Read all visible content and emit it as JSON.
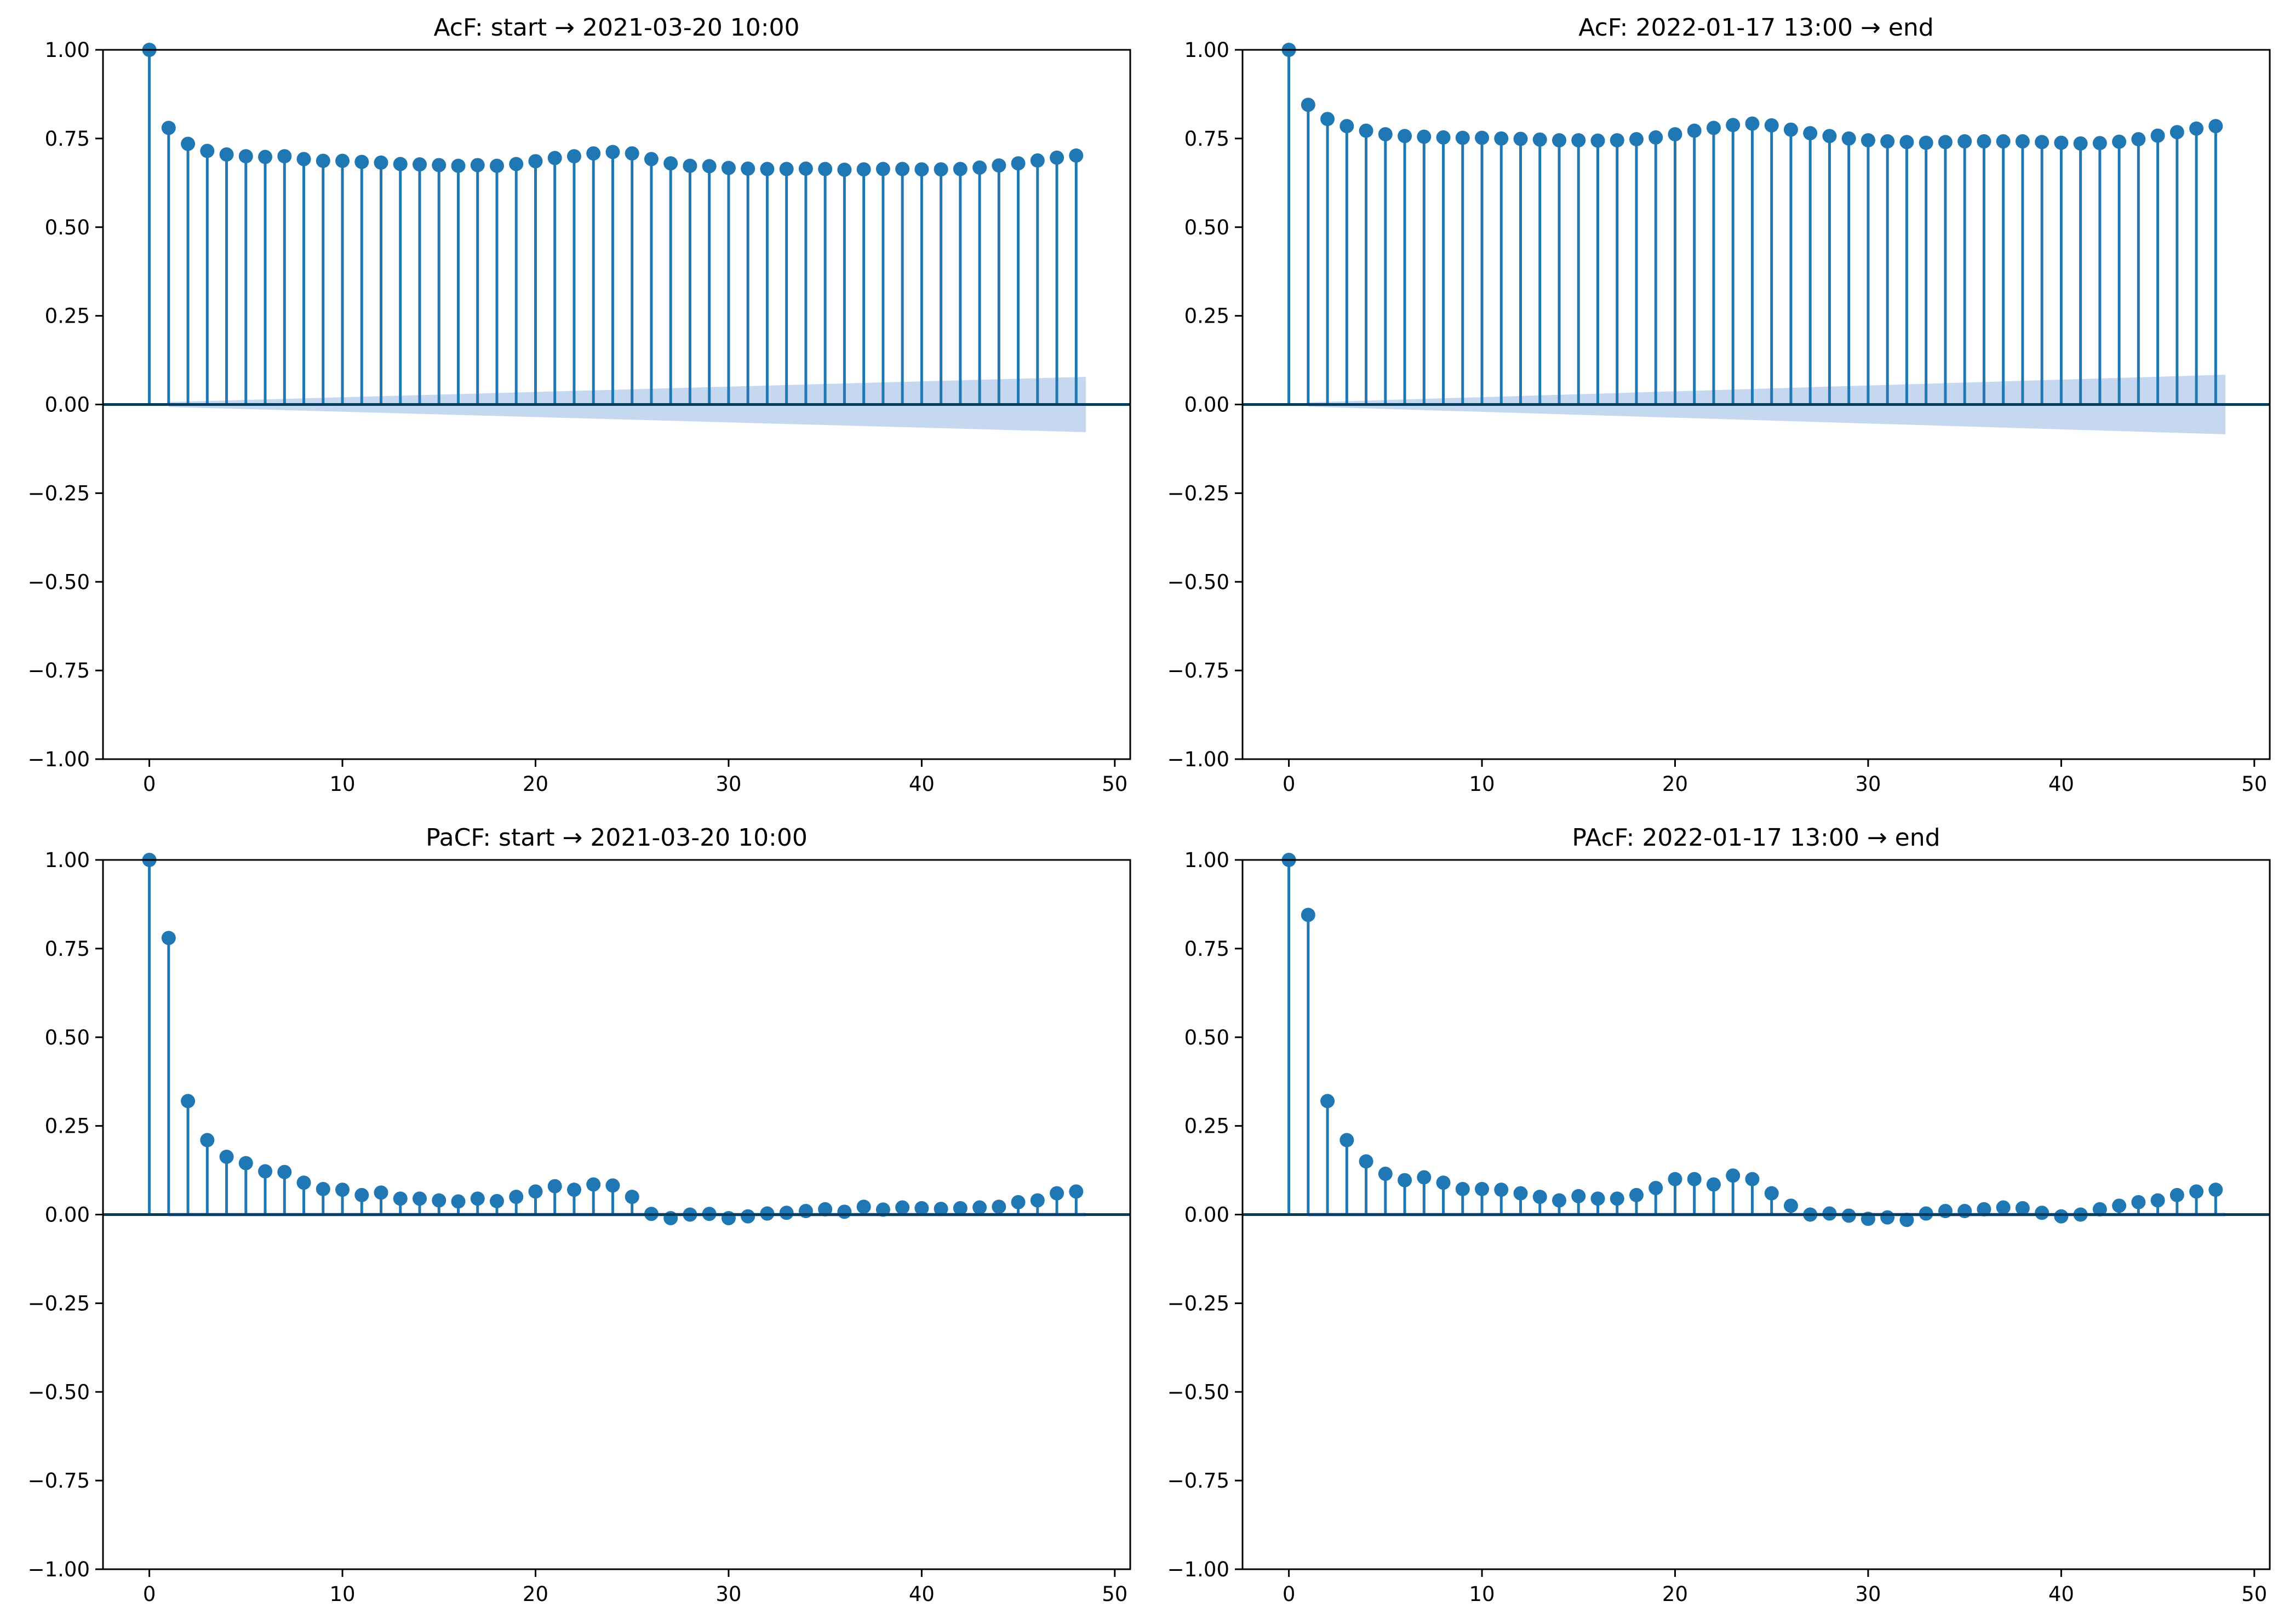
{
  "colors": {
    "stem": "#1f77b4",
    "band": "#aec7e8",
    "zero_line": "#083c5a",
    "axis": "#000000"
  },
  "chart_data": [
    {
      "type": "stem",
      "title": "AcF: start → 2021-03-20 10:00",
      "xlim": [
        -2.4,
        50.8
      ],
      "ylim": [
        -1.0,
        1.0
      ],
      "xticks": [
        0,
        10,
        20,
        30,
        40,
        50
      ],
      "yticks": [
        -1.0,
        -0.75,
        -0.5,
        -0.25,
        0.0,
        0.25,
        0.5,
        0.75,
        1.0
      ],
      "ytick_labels": [
        "−1.00",
        "−0.75",
        "−0.50",
        "−0.25",
        "0.00",
        "0.25",
        "0.50",
        "0.75",
        "1.00"
      ],
      "grid": false,
      "lags": [
        0,
        1,
        2,
        3,
        4,
        5,
        6,
        7,
        8,
        9,
        10,
        11,
        12,
        13,
        14,
        15,
        16,
        17,
        18,
        19,
        20,
        21,
        22,
        23,
        24,
        25,
        26,
        27,
        28,
        29,
        30,
        31,
        32,
        33,
        34,
        35,
        36,
        37,
        38,
        39,
        40,
        41,
        42,
        43,
        44,
        45,
        46,
        47,
        48
      ],
      "values": [
        1.0,
        0.78,
        0.735,
        0.715,
        0.705,
        0.7,
        0.698,
        0.7,
        0.692,
        0.687,
        0.687,
        0.684,
        0.682,
        0.678,
        0.677,
        0.675,
        0.673,
        0.675,
        0.673,
        0.678,
        0.686,
        0.695,
        0.7,
        0.708,
        0.712,
        0.708,
        0.692,
        0.68,
        0.673,
        0.672,
        0.667,
        0.665,
        0.664,
        0.664,
        0.665,
        0.664,
        0.662,
        0.663,
        0.664,
        0.664,
        0.663,
        0.663,
        0.664,
        0.668,
        0.674,
        0.68,
        0.688,
        0.696,
        0.702
      ],
      "confidence_band": {
        "lags": [
          1,
          48.5
        ],
        "upper": [
          0.007,
          0.078
        ]
      }
    },
    {
      "type": "stem",
      "title": "AcF: 2022-01-17 13:00 → end",
      "xlim": [
        -2.4,
        50.8
      ],
      "ylim": [
        -1.0,
        1.0
      ],
      "xticks": [
        0,
        10,
        20,
        30,
        40,
        50
      ],
      "yticks": [
        -1.0,
        -0.75,
        -0.5,
        -0.25,
        0.0,
        0.25,
        0.5,
        0.75,
        1.0
      ],
      "ytick_labels": [
        "−1.00",
        "−0.75",
        "−0.50",
        "−0.25",
        "0.00",
        "0.25",
        "0.50",
        "0.75",
        "1.00"
      ],
      "grid": false,
      "lags": [
        0,
        1,
        2,
        3,
        4,
        5,
        6,
        7,
        8,
        9,
        10,
        11,
        12,
        13,
        14,
        15,
        16,
        17,
        18,
        19,
        20,
        21,
        22,
        23,
        24,
        25,
        26,
        27,
        28,
        29,
        30,
        31,
        32,
        33,
        34,
        35,
        36,
        37,
        38,
        39,
        40,
        41,
        42,
        43,
        44,
        45,
        46,
        47,
        48
      ],
      "values": [
        1.0,
        0.845,
        0.805,
        0.785,
        0.772,
        0.762,
        0.757,
        0.755,
        0.753,
        0.752,
        0.752,
        0.75,
        0.749,
        0.747,
        0.745,
        0.745,
        0.744,
        0.745,
        0.748,
        0.753,
        0.762,
        0.772,
        0.78,
        0.788,
        0.792,
        0.787,
        0.775,
        0.765,
        0.757,
        0.75,
        0.745,
        0.742,
        0.74,
        0.738,
        0.74,
        0.742,
        0.742,
        0.742,
        0.742,
        0.74,
        0.738,
        0.736,
        0.737,
        0.741,
        0.748,
        0.758,
        0.768,
        0.778,
        0.785
      ],
      "confidence_band": {
        "lags": [
          1,
          48.5
        ],
        "upper": [
          0.006,
          0.084
        ]
      }
    },
    {
      "type": "stem",
      "title": "PaCF: start → 2021-03-20 10:00",
      "xlim": [
        -2.4,
        50.8
      ],
      "ylim": [
        -1.0,
        1.0
      ],
      "xticks": [
        0,
        10,
        20,
        30,
        40,
        50
      ],
      "yticks": [
        -1.0,
        -0.75,
        -0.5,
        -0.25,
        0.0,
        0.25,
        0.5,
        0.75,
        1.0
      ],
      "ytick_labels": [
        "−1.00",
        "−0.75",
        "−0.50",
        "−0.25",
        "0.00",
        "0.25",
        "0.50",
        "0.75",
        "1.00"
      ],
      "grid": false,
      "lags": [
        0,
        1,
        2,
        3,
        4,
        5,
        6,
        7,
        8,
        9,
        10,
        11,
        12,
        13,
        14,
        15,
        16,
        17,
        18,
        19,
        20,
        21,
        22,
        23,
        24,
        25,
        26,
        27,
        28,
        29,
        30,
        31,
        32,
        33,
        34,
        35,
        36,
        37,
        38,
        39,
        40,
        41,
        42,
        43,
        44,
        45,
        46,
        47,
        48
      ],
      "values": [
        1.0,
        0.78,
        0.32,
        0.21,
        0.163,
        0.145,
        0.122,
        0.12,
        0.09,
        0.072,
        0.07,
        0.055,
        0.062,
        0.045,
        0.045,
        0.04,
        0.037,
        0.045,
        0.038,
        0.05,
        0.065,
        0.08,
        0.07,
        0.085,
        0.082,
        0.05,
        0.002,
        -0.01,
        0.0,
        0.002,
        -0.01,
        -0.005,
        0.003,
        0.005,
        0.01,
        0.015,
        0.008,
        0.022,
        0.014,
        0.02,
        0.018,
        0.016,
        0.018,
        0.02,
        0.022,
        0.035,
        0.04,
        0.06,
        0.065
      ],
      "confidence_band": {
        "lags": [
          1,
          48.5
        ],
        "upper": [
          0.006,
          0.006
        ]
      }
    },
    {
      "type": "stem",
      "title": "PAcF: 2022-01-17 13:00 → end",
      "xlim": [
        -2.4,
        50.8
      ],
      "ylim": [
        -1.0,
        1.0
      ],
      "xticks": [
        0,
        10,
        20,
        30,
        40,
        50
      ],
      "yticks": [
        -1.0,
        -0.75,
        -0.5,
        -0.25,
        0.0,
        0.25,
        0.5,
        0.75,
        1.0
      ],
      "ytick_labels": [
        "−1.00",
        "−0.75",
        "−0.50",
        "−0.25",
        "0.00",
        "0.25",
        "0.50",
        "0.75",
        "1.00"
      ],
      "grid": false,
      "lags": [
        0,
        1,
        2,
        3,
        4,
        5,
        6,
        7,
        8,
        9,
        10,
        11,
        12,
        13,
        14,
        15,
        16,
        17,
        18,
        19,
        20,
        21,
        22,
        23,
        24,
        25,
        26,
        27,
        28,
        29,
        30,
        31,
        32,
        33,
        34,
        35,
        36,
        37,
        38,
        39,
        40,
        41,
        42,
        43,
        44,
        45,
        46,
        47,
        48
      ],
      "values": [
        1.0,
        0.845,
        0.32,
        0.21,
        0.15,
        0.115,
        0.097,
        0.105,
        0.09,
        0.072,
        0.072,
        0.07,
        0.06,
        0.05,
        0.04,
        0.052,
        0.045,
        0.045,
        0.055,
        0.075,
        0.1,
        0.1,
        0.085,
        0.11,
        0.1,
        0.06,
        0.025,
        0.0,
        0.003,
        -0.003,
        -0.012,
        -0.008,
        -0.015,
        0.003,
        0.01,
        0.01,
        0.015,
        0.02,
        0.018,
        0.005,
        -0.005,
        0.0,
        0.015,
        0.025,
        0.035,
        0.04,
        0.055,
        0.065,
        0.07
      ],
      "confidence_band": {
        "lags": [
          1,
          48.5
        ],
        "upper": [
          0.006,
          0.006
        ]
      }
    }
  ]
}
